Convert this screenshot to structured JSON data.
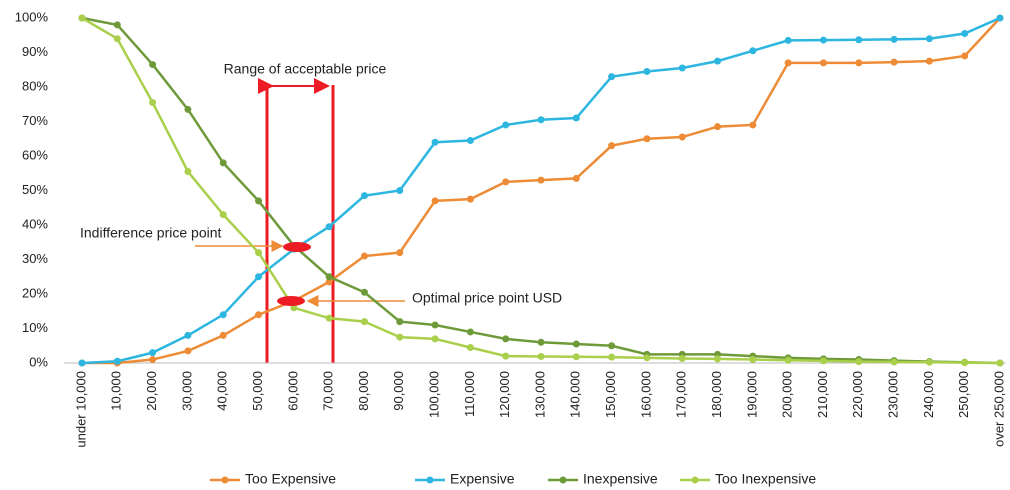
{
  "chart_data": {
    "type": "line",
    "categories": [
      "under 10,000",
      "10,000",
      "20,000",
      "30,000",
      "40,000",
      "50,000",
      "60,000",
      "70,000",
      "80,000",
      "90,000",
      "100,000",
      "110,000",
      "120,000",
      "130,000",
      "140,000",
      "150,000",
      "160,000",
      "170,000",
      "180,000",
      "190,000",
      "200,000",
      "210,000",
      "220,000",
      "230,000",
      "240,000",
      "250,000",
      "over 250,000"
    ],
    "series": [
      {
        "name": "Too Expensive",
        "color": "#ed8b36",
        "values": [
          0,
          0,
          1,
          3.5,
          8,
          14,
          18,
          23.5,
          31,
          32,
          47,
          47.5,
          52.5,
          53,
          53.5,
          63,
          65,
          65.5,
          68.5,
          69,
          87,
          87,
          87,
          87.2,
          87.5,
          89,
          100
        ]
      },
      {
        "name": "Expensive",
        "color": "#2db6e0",
        "values": [
          0,
          0.5,
          3,
          8,
          14,
          25,
          33,
          39.5,
          48.5,
          50,
          64,
          64.5,
          69,
          70.5,
          71,
          83,
          84.5,
          85.5,
          87.5,
          90.5,
          93.5,
          93.6,
          93.7,
          93.8,
          94,
          95.5,
          100
        ]
      },
      {
        "name": "Inexpensive",
        "color": "#6e9a3a",
        "values": [
          100,
          98,
          86.5,
          73.5,
          58,
          47,
          34,
          25,
          20.5,
          12,
          11,
          9,
          7,
          6,
          5.5,
          5,
          2.5,
          2.5,
          2.5,
          2,
          1.5,
          1.2,
          1,
          0.7,
          0.4,
          0.2,
          0
        ]
      },
      {
        "name": "Too Inexpensive",
        "color": "#a9cf4b",
        "values": [
          100,
          94,
          75.5,
          55.5,
          43,
          32,
          16,
          13,
          12,
          7.5,
          7,
          4.5,
          2,
          1.9,
          1.8,
          1.7,
          1.5,
          1.3,
          1.2,
          1,
          0.8,
          0.6,
          0.4,
          0.3,
          0.2,
          0.1,
          0
        ]
      }
    ],
    "ylim": [
      0,
      100
    ],
    "yticks": [
      {
        "value": 0,
        "label": "0%"
      },
      {
        "value": 10,
        "label": "10%"
      },
      {
        "value": 20,
        "label": "20%"
      },
      {
        "value": 30,
        "label": "30%"
      },
      {
        "value": 40,
        "label": "40%"
      },
      {
        "value": 50,
        "label": "50%"
      },
      {
        "value": 60,
        "label": "60%"
      },
      {
        "value": 70,
        "label": "70%"
      },
      {
        "value": 80,
        "label": "80%"
      },
      {
        "value": 90,
        "label": "90%"
      },
      {
        "value": 100,
        "label": "100%"
      }
    ],
    "annotations": [
      "Range of acceptable price",
      "Indifference price point",
      "Optimal price point  USD"
    ],
    "legend": "bottom"
  }
}
